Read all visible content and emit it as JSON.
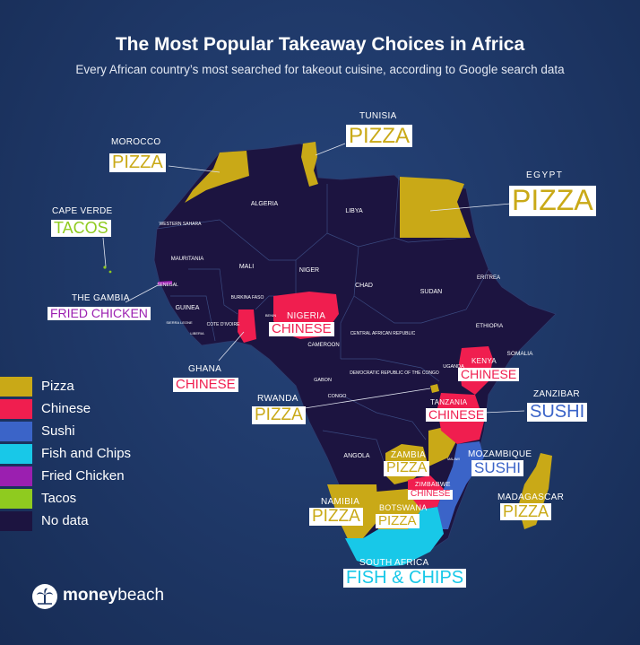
{
  "header": {
    "title": "The Most Popular Takeaway Choices in Africa",
    "subtitle": "Every African country’s most searched for takeout cuisine, according to Google search data"
  },
  "colors": {
    "pizza": "#c9a917",
    "chinese": "#f01e4f",
    "sushi": "#3b64c8",
    "fish_and_chips": "#18c8e8",
    "fried_chicken": "#9b1fb0",
    "tacos": "#8fcb1f",
    "no_data": "#1c1440"
  },
  "legend": [
    {
      "label": "Pizza",
      "color": "#c9a917"
    },
    {
      "label": "Chinese",
      "color": "#f01e4f"
    },
    {
      "label": "Sushi",
      "color": "#3b64c8"
    },
    {
      "label": "Fish and Chips",
      "color": "#18c8e8"
    },
    {
      "label": "Fried Chicken",
      "color": "#9b1fb0"
    },
    {
      "label": "Tacos",
      "color": "#8fcb1f"
    },
    {
      "label": "No data",
      "color": "#1c1440"
    }
  ],
  "map_labels": {
    "algeria": "ALGERIA",
    "libya": "LIBYA",
    "western_sahara": "WESTERN SAHARA",
    "mauritania": "MAURITANIA",
    "mali": "MALI",
    "niger": "NIGER",
    "chad": "CHAD",
    "sudan": "SUDAN",
    "eritrea": "ERITREA",
    "ethiopia": "ETHIOPIA",
    "somalia": "SOMALIA",
    "senegal": "SENEGAL",
    "guinea": "GUINEA",
    "sierra_leone": "SIERRA LEONE",
    "liberia": "LIBERIA",
    "cote_divoire": "COTE D'IVOIRE",
    "burkina_faso": "BURKINA FASO",
    "benin": "BENIN",
    "cameroon": "CAMEROON",
    "car": "CENTRAL AFRICAN REPUBLIC",
    "gabon": "GABON",
    "congo": "CONGO",
    "drc": "DEMOCRATIC REPUBLIC OF THE CONGO",
    "uganda": "UGANDA",
    "angola": "ANGOLA",
    "malawi": "MALAWI"
  },
  "callouts": {
    "morocco": {
      "country": "MOROCCO",
      "cuisine": "PIZZA"
    },
    "tunisia": {
      "country": "TUNISIA",
      "cuisine": "PIZZA"
    },
    "egypt": {
      "country": "EGYPT",
      "cuisine": "PIZZA"
    },
    "cape_verde": {
      "country": "CAPE VERDE",
      "cuisine": "TACOS"
    },
    "gambia": {
      "country": "THE GAMBIA",
      "cuisine": "FRIED CHICKEN"
    },
    "nigeria": {
      "country": "NIGERIA",
      "cuisine": "CHINESE"
    },
    "ghana": {
      "country": "GHANA",
      "cuisine": "CHINESE"
    },
    "kenya": {
      "country": "KENYA",
      "cuisine": "CHINESE"
    },
    "zanzibar": {
      "country": "ZANZIBAR",
      "cuisine": "SUSHI"
    },
    "rwanda": {
      "country": "RWANDA",
      "cuisine": "PIZZA"
    },
    "tanzania": {
      "country": "TANZANIA",
      "cuisine": "CHINESE"
    },
    "zambia": {
      "country": "ZAMBIA",
      "cuisine": "PIZZA"
    },
    "mozambique": {
      "country": "MOZAMBIQUE",
      "cuisine": "SUSHI"
    },
    "zimbabwe": {
      "country": "ZIMBABWE",
      "cuisine": "CHINESE"
    },
    "namibia": {
      "country": "NAMIBIA",
      "cuisine": "PIZZA"
    },
    "botswana": {
      "country": "BOTSWANA",
      "cuisine": "PIZZA"
    },
    "madagascar": {
      "country": "MADAGASCAR",
      "cuisine": "PIZZA"
    },
    "south_africa": {
      "country": "SOUTH AFRICA",
      "cuisine": "FISH & CHIPS"
    }
  },
  "brand": {
    "prefix": "money",
    "suffix": "beach"
  }
}
